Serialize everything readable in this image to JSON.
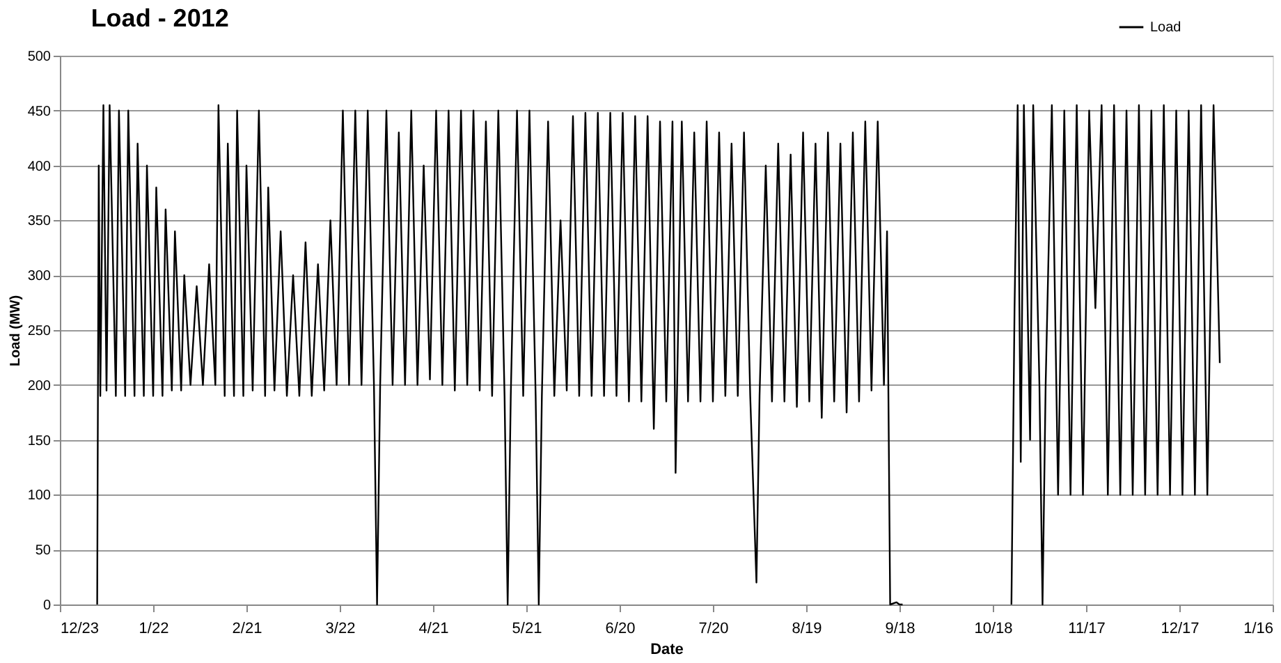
{
  "chart_data": {
    "type": "line",
    "title": "Load - 2012",
    "xlabel": "Date",
    "ylabel": "Load (MW)",
    "xlim": [
      "2011-12-23",
      "2013-01-16"
    ],
    "xticks": [
      {
        "value": "2011-12-23",
        "label": "12/23"
      },
      {
        "value": "2012-01-22",
        "label": "1/22"
      },
      {
        "value": "2012-02-21",
        "label": "2/21"
      },
      {
        "value": "2012-03-22",
        "label": "3/22"
      },
      {
        "value": "2012-04-21",
        "label": "4/21"
      },
      {
        "value": "2012-05-21",
        "label": "5/21"
      },
      {
        "value": "2012-06-20",
        "label": "6/20"
      },
      {
        "value": "2012-07-20",
        "label": "7/20"
      },
      {
        "value": "2012-08-19",
        "label": "8/19"
      },
      {
        "value": "2012-09-18",
        "label": "9/18"
      },
      {
        "value": "2012-10-18",
        "label": "10/18"
      },
      {
        "value": "2012-11-17",
        "label": "11/17"
      },
      {
        "value": "2012-12-17",
        "label": "12/17"
      },
      {
        "value": "2013-01-16",
        "label": "1/16"
      }
    ],
    "ylim": [
      0,
      500
    ],
    "yticks": [
      0,
      50,
      100,
      150,
      200,
      250,
      300,
      350,
      400,
      450,
      500
    ],
    "grid": "y",
    "legend": "top right",
    "line_style": "solid",
    "marker": "none",
    "series": [
      {
        "name": "Load",
        "color": "#000000",
        "x": [
          "2012-01-04T00:00",
          "2012-01-04T12:00",
          "2012-01-05",
          "2012-01-06",
          "2012-01-07",
          "2012-01-08",
          "2012-01-10",
          "2012-01-11",
          "2012-01-13",
          "2012-01-14",
          "2012-01-16",
          "2012-01-17",
          "2012-01-19",
          "2012-01-20",
          "2012-01-22",
          "2012-01-23",
          "2012-01-25",
          "2012-01-26",
          "2012-01-28",
          "2012-01-29",
          "2012-01-31",
          "2012-02-01",
          "2012-02-03",
          "2012-02-05",
          "2012-02-07",
          "2012-02-09",
          "2012-02-11",
          "2012-02-12",
          "2012-02-14",
          "2012-02-15",
          "2012-02-17",
          "2012-02-18",
          "2012-02-20",
          "2012-02-21",
          "2012-02-23",
          "2012-02-25",
          "2012-02-27",
          "2012-02-28",
          "2012-03-01",
          "2012-03-03",
          "2012-03-05",
          "2012-03-07",
          "2012-03-09",
          "2012-03-11",
          "2012-03-13",
          "2012-03-15",
          "2012-03-17",
          "2012-03-19",
          "2012-03-21",
          "2012-03-23",
          "2012-03-25",
          "2012-03-27",
          "2012-03-29",
          "2012-03-31",
          "2012-04-02",
          "2012-04-03",
          "2012-04-04",
          "2012-04-06",
          "2012-04-08",
          "2012-04-10",
          "2012-04-12",
          "2012-04-14",
          "2012-04-16",
          "2012-04-18",
          "2012-04-20",
          "2012-04-22",
          "2012-04-24",
          "2012-04-26",
          "2012-04-28",
          "2012-04-30",
          "2012-05-02",
          "2012-05-04",
          "2012-05-06",
          "2012-05-08",
          "2012-05-10",
          "2012-05-12",
          "2012-05-14",
          "2012-05-15",
          "2012-05-16",
          "2012-05-18",
          "2012-05-20",
          "2012-05-22",
          "2012-05-24",
          "2012-05-25",
          "2012-05-26",
          "2012-05-28",
          "2012-05-30",
          "2012-06-01",
          "2012-06-03",
          "2012-06-05",
          "2012-06-07",
          "2012-06-09",
          "2012-06-11",
          "2012-06-13",
          "2012-06-15",
          "2012-06-17",
          "2012-06-19",
          "2012-06-21",
          "2012-06-23",
          "2012-06-25",
          "2012-06-27",
          "2012-06-29",
          "2012-07-01",
          "2012-07-03",
          "2012-07-05",
          "2012-07-07",
          "2012-07-08",
          "2012-07-10",
          "2012-07-12",
          "2012-07-14",
          "2012-07-16",
          "2012-07-18",
          "2012-07-20",
          "2012-07-22",
          "2012-07-24",
          "2012-07-26",
          "2012-07-28",
          "2012-07-30",
          "2012-08-01",
          "2012-08-03",
          "2012-08-04",
          "2012-08-06",
          "2012-08-08",
          "2012-08-10",
          "2012-08-12",
          "2012-08-14",
          "2012-08-16",
          "2012-08-18",
          "2012-08-20",
          "2012-08-22",
          "2012-08-24",
          "2012-08-26",
          "2012-08-28",
          "2012-08-30",
          "2012-09-01",
          "2012-09-03",
          "2012-09-05",
          "2012-09-07",
          "2012-09-09",
          "2012-09-11",
          "2012-09-13",
          "2012-09-14",
          "2012-09-15",
          "2012-09-17",
          "2012-09-18",
          "2012-09-19",
          "2012-09-20",
          "2012-10-24",
          "2012-10-25",
          "2012-10-26",
          "2012-10-27",
          "2012-10-28",
          "2012-10-30",
          "2012-10-31",
          "2012-11-02",
          "2012-11-03",
          "2012-11-04",
          "2012-11-06",
          "2012-11-08",
          "2012-11-10",
          "2012-11-12",
          "2012-11-14",
          "2012-11-16",
          "2012-11-18",
          "2012-11-20",
          "2012-11-22",
          "2012-11-24",
          "2012-11-26",
          "2012-11-28",
          "2012-11-30",
          "2012-12-02",
          "2012-12-04",
          "2012-12-06",
          "2012-12-08",
          "2012-12-10",
          "2012-12-12",
          "2012-12-14",
          "2012-12-16",
          "2012-12-18",
          "2012-12-20",
          "2012-12-22",
          "2012-12-24",
          "2012-12-26",
          "2012-12-28",
          "2012-12-30"
        ],
        "values": [
          0,
          400,
          190,
          455,
          195,
          455,
          190,
          450,
          190,
          450,
          190,
          420,
          190,
          400,
          190,
          380,
          190,
          360,
          195,
          340,
          195,
          300,
          200,
          290,
          200,
          310,
          200,
          455,
          190,
          420,
          190,
          450,
          190,
          400,
          195,
          450,
          190,
          380,
          195,
          340,
          190,
          300,
          190,
          330,
          190,
          310,
          195,
          350,
          200,
          450,
          200,
          450,
          200,
          450,
          200,
          0,
          200,
          450,
          200,
          430,
          200,
          450,
          200,
          400,
          205,
          450,
          200,
          450,
          195,
          450,
          200,
          450,
          195,
          440,
          190,
          450,
          190,
          0,
          190,
          450,
          190,
          450,
          190,
          0,
          190,
          440,
          190,
          350,
          195,
          445,
          190,
          448,
          190,
          448,
          190,
          448,
          190,
          448,
          185,
          445,
          185,
          445,
          160,
          440,
          185,
          440,
          120,
          440,
          185,
          430,
          185,
          440,
          185,
          430,
          190,
          420,
          190,
          430,
          190,
          20,
          190,
          400,
          185,
          420,
          185,
          410,
          180,
          430,
          185,
          420,
          170,
          430,
          185,
          420,
          175,
          430,
          185,
          440,
          195,
          440,
          200,
          340,
          0,
          2,
          0,
          0,
          null,
          0,
          270,
          455,
          130,
          455,
          150,
          455,
          200,
          0,
          200,
          455,
          100,
          450,
          100,
          455,
          100,
          450,
          270,
          455,
          100,
          455,
          100,
          450,
          100,
          455,
          100,
          450,
          100,
          455,
          100,
          450,
          100,
          450,
          100,
          455,
          100,
          455,
          220
        ]
      }
    ]
  }
}
